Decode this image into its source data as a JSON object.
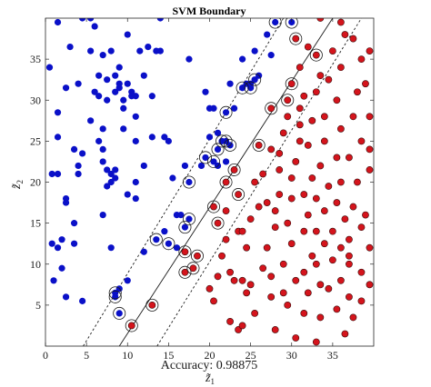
{
  "chart_data": {
    "type": "scatter",
    "title": "SVM Boundary",
    "xlabel_var": "z̃",
    "xlabel_sub": "1",
    "ylabel_var": "z̃",
    "ylabel_sub": "2",
    "caption": "Accuracy:  0.98875",
    "xlim": [
      0,
      40
    ],
    "ylim": [
      0,
      40
    ],
    "xticks": [
      0,
      5,
      10,
      15,
      20,
      25,
      30,
      35
    ],
    "yticks": [
      5,
      10,
      15,
      20,
      25,
      30,
      35
    ],
    "colors": {
      "class1": "#0a10c8",
      "class2": "#d4141c",
      "line": "#1a1a1a"
    },
    "boundary": {
      "x": [
        9.0,
        35.0
      ],
      "y": [
        0,
        40
      ]
    },
    "margin_left": {
      "x": [
        4.6,
        29.0
      ],
      "y": [
        0,
        40
      ]
    },
    "margin_right": {
      "x": [
        13.6,
        38.5
      ],
      "y": [
        0,
        40
      ]
    },
    "series": [
      {
        "points": [
          [
            0.5,
            34
          ],
          [
            1.0,
            8
          ],
          [
            1.5,
            28.5
          ],
          [
            1.5,
            39.5
          ],
          [
            1.5,
            25.5
          ],
          [
            0.8,
            21
          ],
          [
            0.8,
            12.5
          ],
          [
            1.5,
            12
          ],
          [
            2.0,
            9.5
          ],
          [
            2.5,
            6
          ],
          [
            1.5,
            21
          ],
          [
            2.0,
            13
          ],
          [
            2.5,
            18
          ],
          [
            2.5,
            17.5
          ],
          [
            3.0,
            36.5
          ],
          [
            2.5,
            31.5
          ],
          [
            3.5,
            24
          ],
          [
            3.5,
            15
          ],
          [
            3.5,
            12.5
          ],
          [
            4.0,
            32
          ],
          [
            4.0,
            21
          ],
          [
            4.0,
            22
          ],
          [
            4.5,
            23.5
          ],
          [
            4.5,
            5.5
          ],
          [
            4.5,
            40
          ],
          [
            5.5,
            40
          ],
          [
            5.5,
            36
          ],
          [
            5.5,
            27.5
          ],
          [
            6.5,
            33
          ],
          [
            6.0,
            39
          ],
          [
            6.0,
            31
          ],
          [
            6.5,
            30.5
          ],
          [
            6.5,
            25
          ],
          [
            7.0,
            35.5
          ],
          [
            7.0,
            24
          ],
          [
            7.0,
            22.5
          ],
          [
            7.0,
            26.5
          ],
          [
            7.0,
            16
          ],
          [
            7.5,
            30
          ],
          [
            7.5,
            32.5
          ],
          [
            7.5,
            19.5
          ],
          [
            7.5,
            21.5
          ],
          [
            8.0,
            20
          ],
          [
            8.0,
            21
          ],
          [
            8.0,
            36
          ],
          [
            8.0,
            12
          ],
          [
            8.5,
            31
          ],
          [
            8.5,
            33
          ],
          [
            8.5,
            21.5
          ],
          [
            8.5,
            20.5
          ],
          [
            9.0,
            31.5
          ],
          [
            9.0,
            32
          ],
          [
            9.0,
            34
          ],
          [
            9.0,
            7
          ],
          [
            9.5,
            29
          ],
          [
            9.5,
            26.5
          ],
          [
            9.5,
            30
          ],
          [
            10.0,
            38
          ],
          [
            10.0,
            32
          ],
          [
            10.0,
            18.5
          ],
          [
            10.0,
            8
          ],
          [
            10.5,
            30.5
          ],
          [
            10.5,
            31
          ],
          [
            11.0,
            30.5
          ],
          [
            11.0,
            28
          ],
          [
            11.0,
            25
          ],
          [
            11.0,
            20
          ],
          [
            11.0,
            18
          ],
          [
            11.5,
            36
          ],
          [
            12.0,
            33
          ],
          [
            12.0,
            22
          ],
          [
            12.0,
            11.5
          ],
          [
            12.5,
            36.5
          ],
          [
            13.0,
            30.5
          ],
          [
            13.0,
            25.5
          ],
          [
            13.5,
            36
          ],
          [
            14.0,
            40
          ],
          [
            14.0,
            36
          ],
          [
            14.5,
            25.5
          ],
          [
            15.0,
            25
          ],
          [
            15.5,
            20.5
          ],
          [
            14.5,
            14
          ],
          [
            16.0,
            16
          ],
          [
            16.0,
            12
          ],
          [
            16.5,
            16
          ],
          [
            17.0,
            22
          ],
          [
            17.5,
            35
          ],
          [
            19.0,
            22
          ],
          [
            19.5,
            31
          ],
          [
            20.0,
            29
          ],
          [
            20.0,
            25.5
          ],
          [
            20.5,
            29
          ],
          [
            21.0,
            26
          ],
          [
            21.0,
            22
          ],
          [
            22.0,
            22.5
          ],
          [
            22.5,
            32
          ],
          [
            23.0,
            29
          ],
          [
            24.0,
            35
          ],
          [
            24.5,
            32
          ],
          [
            25.0,
            32
          ],
          [
            25.5,
            36
          ],
          [
            26.0,
            33
          ],
          [
            27.0,
            38
          ],
          [
            27.5,
            35.5
          ],
          [
            8.5,
            6.5
          ],
          [
            8.5,
            6
          ],
          [
            9.0,
            4
          ],
          [
            13.5,
            13
          ],
          [
            15.0,
            12.5
          ],
          [
            17.0,
            14.5
          ],
          [
            17.5,
            15.5
          ],
          [
            17.5,
            20
          ],
          [
            19.5,
            23
          ],
          [
            20.5,
            22.5
          ],
          [
            21.0,
            24
          ],
          [
            21.5,
            25
          ],
          [
            22.0,
            25
          ],
          [
            22.5,
            24.5
          ],
          [
            22.0,
            28.5
          ],
          [
            24.0,
            31.5
          ],
          [
            25.0,
            31.5
          ],
          [
            25.5,
            32.5
          ],
          [
            28.0,
            39.5
          ],
          [
            30.0,
            39.5
          ]
        ]
      },
      {
        "points": [
          [
            10.5,
            2.5
          ],
          [
            13.0,
            5
          ],
          [
            17.0,
            9
          ],
          [
            17.0,
            11.5
          ],
          [
            18.0,
            9.5
          ],
          [
            18.5,
            11
          ],
          [
            20.5,
            17
          ],
          [
            21.0,
            15
          ],
          [
            22.0,
            20
          ],
          [
            23.0,
            21.5
          ],
          [
            23.5,
            18.5
          ],
          [
            26.0,
            24.5
          ],
          [
            27.5,
            29
          ],
          [
            29.5,
            30
          ],
          [
            30.0,
            32
          ],
          [
            30.5,
            37.5
          ],
          [
            33.0,
            35.5
          ],
          [
            20.0,
            7
          ],
          [
            20.5,
            5.5
          ],
          [
            21.0,
            8.5
          ],
          [
            21.5,
            11
          ],
          [
            22.0,
            13
          ],
          [
            22.0,
            16.5
          ],
          [
            22.5,
            3
          ],
          [
            22.5,
            9
          ],
          [
            23.0,
            8
          ],
          [
            23.5,
            2
          ],
          [
            23.5,
            14
          ],
          [
            24.0,
            2.5
          ],
          [
            24.0,
            8
          ],
          [
            24.0,
            14
          ],
          [
            24.5,
            6.5
          ],
          [
            24.5,
            12
          ],
          [
            25.0,
            15.5
          ],
          [
            25.0,
            7.5
          ],
          [
            25.5,
            4
          ],
          [
            25.5,
            20
          ],
          [
            26.0,
            17
          ],
          [
            26.5,
            9.5
          ],
          [
            26.5,
            21
          ],
          [
            27.0,
            12
          ],
          [
            27.0,
            17.5
          ],
          [
            27.5,
            8.5
          ],
          [
            27.5,
            6
          ],
          [
            27.5,
            24
          ],
          [
            28.0,
            2
          ],
          [
            28.0,
            14.5
          ],
          [
            28.0,
            16.5
          ],
          [
            28.5,
            18.5
          ],
          [
            28.5,
            21.5
          ],
          [
            28.5,
            23.5
          ],
          [
            29.0,
            26
          ],
          [
            29.0,
            6.5
          ],
          [
            29.0,
            10
          ],
          [
            29.5,
            5
          ],
          [
            29.5,
            15
          ],
          [
            29.5,
            28
          ],
          [
            30.0,
            12.5
          ],
          [
            30.0,
            18
          ],
          [
            30.0,
            20.5
          ],
          [
            30.5,
            1
          ],
          [
            30.5,
            8
          ],
          [
            30.5,
            22.5
          ],
          [
            31.0,
            25
          ],
          [
            31.0,
            29
          ],
          [
            31.0,
            34
          ],
          [
            31.5,
            4
          ],
          [
            31.5,
            9
          ],
          [
            31.5,
            14
          ],
          [
            31.5,
            18.5
          ],
          [
            31.5,
            30.5
          ],
          [
            32.0,
            36.5
          ],
          [
            32.0,
            6.5
          ],
          [
            32.0,
            16
          ],
          [
            32.0,
            24.5
          ],
          [
            32.5,
            11
          ],
          [
            32.5,
            20.5
          ],
          [
            32.5,
            27.5
          ],
          [
            33.0,
            0.5
          ],
          [
            33.0,
            10
          ],
          [
            33.0,
            14
          ],
          [
            33.0,
            18
          ],
          [
            33.0,
            31
          ],
          [
            33.5,
            3.5
          ],
          [
            33.5,
            7.5
          ],
          [
            33.5,
            22
          ],
          [
            33.5,
            33
          ],
          [
            34.0,
            12.5
          ],
          [
            34.0,
            16.5
          ],
          [
            34.0,
            25
          ],
          [
            34.0,
            28
          ],
          [
            34.5,
            7
          ],
          [
            34.5,
            19.5
          ],
          [
            34.5,
            32.5
          ],
          [
            35.0,
            10.5
          ],
          [
            35.0,
            14
          ],
          [
            35.0,
            36
          ],
          [
            35.5,
            4.5
          ],
          [
            35.5,
            17.5
          ],
          [
            35.5,
            23
          ],
          [
            35.5,
            30
          ],
          [
            36.0,
            8
          ],
          [
            36.0,
            12
          ],
          [
            36.0,
            20
          ],
          [
            36.0,
            26.5
          ],
          [
            36.0,
            34
          ],
          [
            36.5,
            1.5
          ],
          [
            36.5,
            15.5
          ],
          [
            36.5,
            38
          ],
          [
            37.0,
            6
          ],
          [
            37.0,
            10
          ],
          [
            37.0,
            11
          ],
          [
            37.0,
            13
          ],
          [
            37.0,
            23
          ],
          [
            37.5,
            37.5
          ],
          [
            37.5,
            3.5
          ],
          [
            37.5,
            17
          ],
          [
            37.5,
            28
          ],
          [
            38.0,
            20
          ],
          [
            38.0,
            31
          ],
          [
            38.5,
            5.5
          ],
          [
            38.5,
            9
          ],
          [
            38.5,
            14.5
          ],
          [
            38.5,
            25
          ],
          [
            39.0,
            16
          ],
          [
            39.0,
            32
          ],
          [
            39.5,
            28
          ],
          [
            39.5,
            24
          ],
          [
            39.5,
            36
          ],
          [
            39.5,
            21.5
          ],
          [
            39.5,
            7.5
          ],
          [
            39.5,
            12
          ],
          [
            36.0,
            39.5
          ],
          [
            33.5,
            40
          ],
          [
            31.0,
            27
          ],
          [
            38.5,
            35
          ]
        ]
      }
    ],
    "support_vectors": [
      [
        8.5,
        6.5
      ],
      [
        8.5,
        6
      ],
      [
        9.0,
        4
      ],
      [
        13.5,
        13
      ],
      [
        15.0,
        12.5
      ],
      [
        17.0,
        14.5
      ],
      [
        17.5,
        15.5
      ],
      [
        17.5,
        20
      ],
      [
        19.5,
        23
      ],
      [
        20.5,
        22.5
      ],
      [
        21.0,
        24
      ],
      [
        21.5,
        25
      ],
      [
        22.0,
        25
      ],
      [
        22.5,
        24.5
      ],
      [
        22.0,
        28.5
      ],
      [
        24.0,
        31.5
      ],
      [
        25.0,
        31.5
      ],
      [
        25.5,
        32.5
      ],
      [
        28.0,
        39.5
      ],
      [
        30.0,
        39.5
      ],
      [
        10.5,
        2.5
      ],
      [
        13.0,
        5
      ],
      [
        17.0,
        9
      ],
      [
        17.0,
        11.5
      ],
      [
        18.0,
        9.5
      ],
      [
        18.5,
        11
      ],
      [
        20.5,
        17
      ],
      [
        21.0,
        15
      ],
      [
        22.0,
        20
      ],
      [
        23.0,
        21.5
      ],
      [
        23.5,
        18.5
      ],
      [
        26.0,
        24.5
      ],
      [
        27.5,
        29
      ],
      [
        29.5,
        30
      ],
      [
        30.0,
        32
      ],
      [
        30.5,
        37.5
      ],
      [
        33.0,
        35.5
      ]
    ]
  }
}
